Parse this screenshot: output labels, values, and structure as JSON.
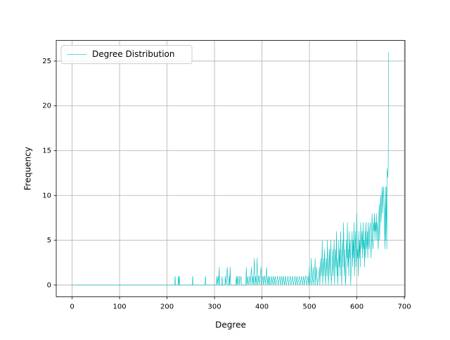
{
  "chart_data": {
    "type": "line",
    "xlabel": "Degree",
    "ylabel": "Frequency",
    "x": [
      0,
      216,
      217,
      218,
      223,
      224,
      225,
      226,
      227,
      253,
      254,
      255,
      280,
      281,
      282,
      304,
      305,
      306,
      308,
      309,
      310,
      311,
      315,
      316,
      317,
      322,
      323,
      324,
      327,
      328,
      330,
      331,
      332,
      333,
      334,
      345,
      346,
      347,
      348,
      349,
      352,
      353,
      356,
      357,
      366,
      367,
      368,
      370,
      371,
      374,
      375,
      378,
      379,
      381,
      382,
      384,
      385,
      387,
      388,
      390,
      391,
      393,
      394,
      395,
      398,
      399,
      402,
      403,
      405,
      406,
      407,
      410,
      411,
      413,
      414,
      416,
      417,
      420,
      421,
      424,
      425,
      428,
      429,
      433,
      434,
      438,
      439,
      442,
      443,
      446,
      447,
      450,
      451,
      455,
      456,
      460,
      461,
      465,
      466,
      470,
      471,
      474,
      475,
      479,
      480,
      484,
      485,
      488,
      489,
      492,
      493,
      494,
      497,
      498,
      500,
      501,
      503,
      504,
      505,
      507,
      508,
      509,
      511,
      512,
      513,
      515,
      516,
      517,
      520,
      521,
      522,
      524,
      525,
      526,
      527,
      528,
      530,
      531,
      532,
      533,
      534,
      536,
      537,
      538,
      539,
      540,
      542,
      543,
      544,
      545,
      546,
      548,
      549,
      550,
      551,
      552,
      553,
      555,
      556,
      557,
      558,
      559,
      560,
      562,
      563,
      564,
      565,
      566,
      567,
      568,
      570,
      571,
      572,
      573,
      574,
      575,
      576,
      577,
      578,
      579,
      580,
      581,
      582,
      583,
      584,
      585,
      586,
      587,
      588,
      589,
      590,
      591,
      592,
      593,
      594,
      595,
      596,
      597,
      598,
      599,
      600,
      601,
      602,
      603,
      604,
      605,
      606,
      607,
      608,
      609,
      610,
      611,
      612,
      613,
      614,
      615,
      616,
      617,
      618,
      619,
      620,
      621,
      622,
      623,
      624,
      625,
      626,
      627,
      628,
      629,
      630,
      631,
      632,
      633,
      634,
      635,
      636,
      637,
      638,
      639,
      640,
      641,
      642,
      643,
      644,
      645,
      646,
      647,
      648,
      649,
      650,
      651,
      652,
      653,
      654,
      655,
      656,
      657,
      658,
      659,
      660,
      661,
      662,
      663,
      664,
      665,
      666,
      667
    ],
    "series": [
      {
        "name": "Degree Distribution",
        "color": "#00bfbf",
        "values": [
          0,
          0,
          1,
          0,
          0,
          1,
          0,
          1,
          0,
          0,
          1,
          0,
          0,
          1,
          0,
          0,
          1,
          0,
          1,
          0,
          2,
          0,
          0,
          1,
          0,
          0,
          1,
          0,
          2,
          0,
          0,
          1,
          0,
          2,
          0,
          0,
          1,
          0,
          1,
          0,
          1,
          0,
          1,
          0,
          0,
          2,
          0,
          1,
          0,
          1,
          0,
          2,
          0,
          1,
          0,
          3,
          0,
          1,
          0,
          3,
          0,
          1,
          1,
          0,
          2,
          0,
          1,
          0,
          1,
          1,
          0,
          2,
          0,
          1,
          0,
          1,
          0,
          1,
          0,
          1,
          0,
          1,
          0,
          1,
          0,
          1,
          0,
          1,
          0,
          1,
          0,
          1,
          0,
          1,
          0,
          1,
          0,
          1,
          0,
          1,
          0,
          1,
          0,
          1,
          0,
          1,
          0,
          1,
          0,
          1,
          1,
          0,
          1,
          0,
          2,
          0,
          1,
          3,
          0,
          1,
          2,
          0,
          1,
          3,
          0,
          2,
          1,
          0,
          1,
          2,
          0,
          3,
          1,
          2,
          5,
          0,
          3,
          1,
          4,
          2,
          0,
          3,
          1,
          5,
          2,
          0,
          4,
          1,
          3,
          5,
          0,
          2,
          4,
          1,
          3,
          5,
          0,
          4,
          2,
          6,
          1,
          3,
          0,
          5,
          2,
          4,
          1,
          6,
          3,
          0,
          5,
          2,
          7,
          3,
          1,
          4,
          0,
          1,
          5,
          3,
          7,
          2,
          4,
          1,
          6,
          3,
          5,
          0,
          2,
          4,
          6,
          2,
          5,
          3,
          7,
          1,
          4,
          6,
          2,
          5,
          8,
          3,
          4,
          1,
          6,
          3,
          5,
          2,
          7,
          4,
          5,
          6,
          3,
          7,
          4,
          5,
          2,
          6,
          3,
          7,
          5,
          4,
          6,
          3,
          7,
          5,
          4,
          6,
          7,
          5,
          3,
          6,
          8,
          5,
          4,
          7,
          6,
          8,
          5,
          7,
          6,
          8,
          5,
          7,
          6,
          4,
          7,
          9,
          5,
          8,
          10,
          7,
          9,
          11,
          8,
          10,
          11,
          9,
          7,
          4,
          11,
          5,
          11,
          4,
          13,
          12,
          13,
          26
        ]
      }
    ],
    "xlim": [
      -33.4,
      701.4
    ],
    "ylim": [
      -1.3,
      27.3
    ],
    "xticks": [
      0,
      100,
      200,
      300,
      400,
      500,
      600,
      700
    ],
    "yticks": [
      0,
      5,
      10,
      15,
      20,
      25
    ],
    "grid": true,
    "legend": "upper left"
  }
}
